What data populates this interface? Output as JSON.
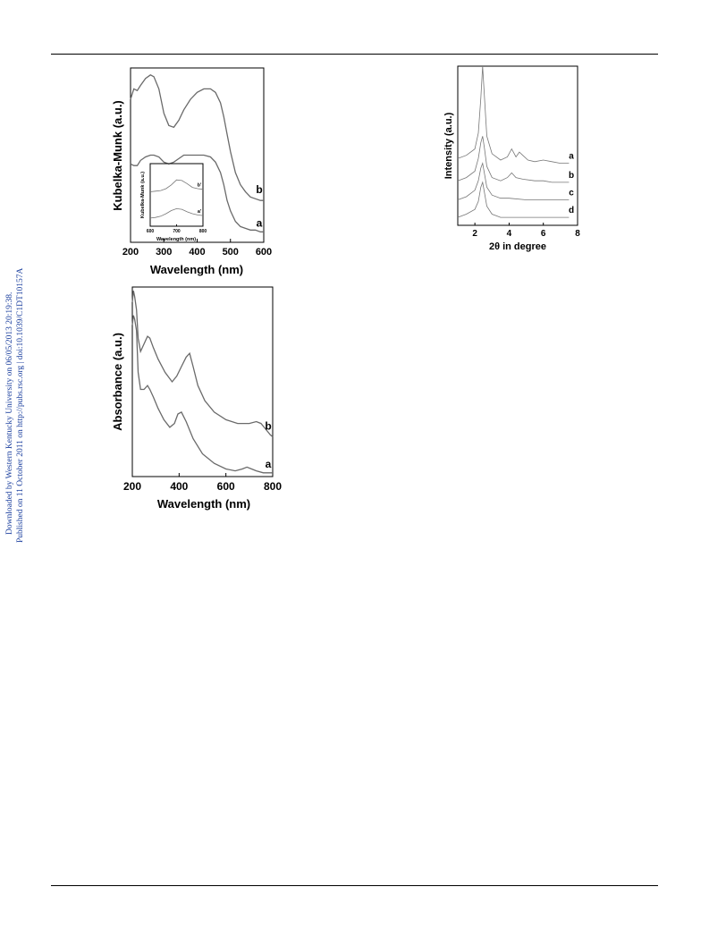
{
  "sidebar": {
    "line1": "Downloaded by Western Kentucky University on 06/05/2013 20:19:38.",
    "line2": "Published on 11 October 2011 on http://pubs.rsc.org | doi:10.1039/C1DT10157A"
  },
  "colors": {
    "sidebar_text": "#1b3f9e",
    "curve": "#6a6a6a"
  },
  "chart_data": [
    {
      "type": "line",
      "xlabel": "Wavelength (nm)",
      "ylabel": "Kubelka-Munk (a.u.)",
      "xlim": [
        200,
        600
      ],
      "xticks": [
        "200",
        "300",
        "400",
        "500",
        "600"
      ],
      "series": [
        {
          "name": "b",
          "x": [
            200,
            210,
            220,
            230,
            245,
            260,
            270,
            285,
            300,
            315,
            330,
            345,
            360,
            380,
            400,
            420,
            440,
            455,
            470,
            480,
            490,
            500,
            515,
            530,
            545,
            560,
            575,
            590,
            600
          ],
          "y": [
            0.82,
            0.88,
            0.87,
            0.9,
            0.94,
            0.96,
            0.95,
            0.88,
            0.74,
            0.67,
            0.66,
            0.7,
            0.76,
            0.82,
            0.86,
            0.88,
            0.88,
            0.86,
            0.8,
            0.72,
            0.62,
            0.52,
            0.4,
            0.33,
            0.29,
            0.26,
            0.25,
            0.24,
            0.24
          ]
        },
        {
          "name": "a",
          "x": [
            200,
            210,
            220,
            230,
            245,
            260,
            270,
            285,
            300,
            315,
            330,
            345,
            360,
            380,
            400,
            420,
            440,
            455,
            470,
            480,
            490,
            500,
            515,
            530,
            545,
            560,
            575,
            590,
            600
          ],
          "y": [
            0.45,
            0.44,
            0.44,
            0.47,
            0.49,
            0.5,
            0.5,
            0.49,
            0.46,
            0.45,
            0.46,
            0.48,
            0.5,
            0.5,
            0.5,
            0.5,
            0.49,
            0.46,
            0.4,
            0.33,
            0.24,
            0.18,
            0.12,
            0.09,
            0.08,
            0.07,
            0.07,
            0.06,
            0.06
          ]
        }
      ],
      "inset": {
        "type": "line",
        "xlabel": "Wavelength (nm)",
        "ylabel": "Kubelka-Munk (a.u.)",
        "xlim": [
          600,
          800
        ],
        "xticks": [
          "600",
          "700",
          "800"
        ],
        "series": [
          {
            "name": "b'",
            "x": [
              600,
              620,
              640,
              660,
              680,
              700,
              720,
              740,
              760,
              780,
              800
            ],
            "y": [
              0.55,
              0.56,
              0.57,
              0.6,
              0.66,
              0.74,
              0.73,
              0.68,
              0.62,
              0.6,
              0.59
            ]
          },
          {
            "name": "a'",
            "x": [
              600,
              620,
              640,
              660,
              680,
              700,
              720,
              740,
              760,
              780,
              800
            ],
            "y": [
              0.13,
              0.14,
              0.16,
              0.2,
              0.25,
              0.28,
              0.27,
              0.23,
              0.2,
              0.18,
              0.17
            ]
          }
        ]
      }
    },
    {
      "type": "line",
      "xlabel": "2θ in degree",
      "ylabel": "Intensity (a.u.)",
      "xlim": [
        1,
        8
      ],
      "xticks": [
        "2",
        "4",
        "6",
        "8"
      ],
      "series": [
        {
          "name": "a",
          "x": [
            1.0,
            1.5,
            2.0,
            2.2,
            2.35,
            2.45,
            2.55,
            2.7,
            3.0,
            3.5,
            3.9,
            4.15,
            4.4,
            4.6,
            4.8,
            5.1,
            5.5,
            6.0,
            6.5,
            7.0,
            7.5
          ],
          "y": [
            0.42,
            0.44,
            0.48,
            0.58,
            0.8,
            1.0,
            0.82,
            0.56,
            0.45,
            0.41,
            0.43,
            0.48,
            0.43,
            0.46,
            0.44,
            0.41,
            0.4,
            0.41,
            0.4,
            0.39,
            0.39
          ]
        },
        {
          "name": "b",
          "x": [
            1.0,
            1.5,
            2.0,
            2.2,
            2.35,
            2.45,
            2.55,
            2.7,
            3.0,
            3.5,
            3.9,
            4.15,
            4.4,
            4.8,
            5.5,
            6.0,
            6.5,
            7.0,
            7.5
          ],
          "y": [
            0.28,
            0.3,
            0.34,
            0.42,
            0.52,
            0.56,
            0.49,
            0.37,
            0.3,
            0.28,
            0.3,
            0.33,
            0.3,
            0.29,
            0.28,
            0.28,
            0.27,
            0.27,
            0.27
          ]
        },
        {
          "name": "c",
          "x": [
            1.0,
            1.5,
            2.0,
            2.2,
            2.35,
            2.45,
            2.55,
            2.7,
            3.0,
            3.5,
            4.0,
            5.0,
            6.0,
            7.0,
            7.5
          ],
          "y": [
            0.16,
            0.18,
            0.22,
            0.28,
            0.36,
            0.39,
            0.33,
            0.24,
            0.19,
            0.17,
            0.17,
            0.16,
            0.16,
            0.16,
            0.16
          ]
        },
        {
          "name": "d",
          "x": [
            1.0,
            1.5,
            2.0,
            2.2,
            2.35,
            2.45,
            2.55,
            2.7,
            3.0,
            3.5,
            4.0,
            5.0,
            6.0,
            7.0,
            7.5
          ],
          "y": [
            0.05,
            0.07,
            0.1,
            0.15,
            0.24,
            0.27,
            0.21,
            0.12,
            0.07,
            0.05,
            0.05,
            0.05,
            0.05,
            0.05,
            0.05
          ]
        }
      ]
    },
    {
      "type": "line",
      "xlabel": "Wavelength (nm)",
      "ylabel": "Absorbance (a.u.)",
      "xlim": [
        200,
        800
      ],
      "xticks": [
        "200",
        "400",
        "600",
        "800"
      ],
      "series": [
        {
          "name": "b",
          "x": [
            200,
            205,
            210,
            218,
            225,
            235,
            250,
            265,
            275,
            290,
            310,
            340,
            370,
            390,
            410,
            430,
            445,
            460,
            480,
            510,
            550,
            600,
            650,
            700,
            730,
            750,
            770,
            790,
            800
          ],
          "y": [
            0.92,
            0.98,
            0.95,
            0.88,
            0.73,
            0.66,
            0.7,
            0.74,
            0.73,
            0.68,
            0.62,
            0.55,
            0.5,
            0.53,
            0.58,
            0.63,
            0.65,
            0.58,
            0.48,
            0.4,
            0.34,
            0.3,
            0.28,
            0.28,
            0.29,
            0.28,
            0.25,
            0.22,
            0.21
          ]
        },
        {
          "name": "a",
          "x": [
            200,
            205,
            210,
            218,
            225,
            235,
            250,
            265,
            275,
            290,
            310,
            335,
            360,
            380,
            395,
            410,
            430,
            460,
            500,
            550,
            600,
            640,
            670,
            690,
            710,
            730,
            760,
            790,
            800
          ],
          "y": [
            0.8,
            0.85,
            0.83,
            0.77,
            0.55,
            0.46,
            0.46,
            0.48,
            0.46,
            0.42,
            0.36,
            0.3,
            0.26,
            0.28,
            0.33,
            0.34,
            0.29,
            0.2,
            0.12,
            0.07,
            0.04,
            0.03,
            0.04,
            0.05,
            0.04,
            0.03,
            0.02,
            0.02,
            0.02
          ]
        }
      ]
    }
  ]
}
